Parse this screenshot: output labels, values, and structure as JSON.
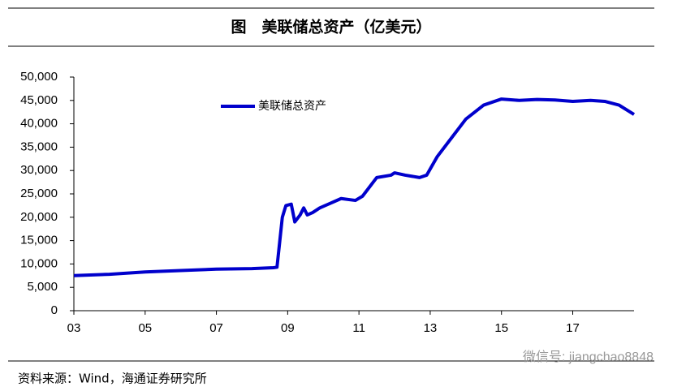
{
  "chart_data": {
    "type": "line",
    "title": "图　美联储总资产（亿美元）",
    "source": "资料来源：Wind，海通证券研究所",
    "watermark": "微信号: jiangchao8848",
    "x": [
      3,
      4,
      5,
      6,
      7,
      8,
      8.6,
      8.7,
      8.78,
      8.85,
      8.95,
      9.1,
      9.2,
      9.35,
      9.45,
      9.55,
      9.7,
      9.9,
      10.2,
      10.5,
      10.9,
      11.1,
      11.5,
      11.9,
      12.0,
      12.3,
      12.7,
      12.9,
      13.2,
      13.6,
      14.0,
      14.5,
      15.0,
      15.5,
      16.0,
      16.5,
      17.0,
      17.5,
      17.9,
      18.3,
      18.72
    ],
    "series": [
      {
        "name": "美联储总资产",
        "color": "#0000cc",
        "values": [
          7500,
          7800,
          8300,
          8600,
          8900,
          9000,
          9200,
          9300,
          15000,
          20000,
          22500,
          22800,
          19000,
          20500,
          22000,
          20500,
          21000,
          22000,
          23000,
          24000,
          23600,
          24500,
          28500,
          29000,
          29500,
          29000,
          28500,
          29000,
          33000,
          37000,
          41000,
          44000,
          45300,
          45000,
          45200,
          45100,
          44800,
          45000,
          44800,
          44000,
          42000
        ]
      }
    ],
    "xlim": [
      3,
      18.72
    ],
    "xticks": [
      {
        "value": 3,
        "label": "03"
      },
      {
        "value": 5,
        "label": "05"
      },
      {
        "value": 7,
        "label": "07"
      },
      {
        "value": 9,
        "label": "09"
      },
      {
        "value": 11,
        "label": "11"
      },
      {
        "value": 13,
        "label": "13"
      },
      {
        "value": 15,
        "label": "15"
      },
      {
        "value": 17,
        "label": "17"
      }
    ],
    "ylim": [
      0,
      50000
    ],
    "yticks": [
      0,
      {
        "value": 5000,
        "label": "5,000"
      },
      {
        "value": 10000,
        "label": "10,000"
      },
      {
        "value": 15000,
        "label": "15,000"
      },
      {
        "value": 20000,
        "label": "20,000"
      },
      {
        "value": 25000,
        "label": "25,000"
      },
      {
        "value": 30000,
        "label": "30,000"
      },
      {
        "value": 35000,
        "label": "35,000"
      },
      {
        "value": 40000,
        "label": "40,000"
      },
      {
        "value": 45000,
        "label": "45,000"
      },
      {
        "value": 50000,
        "label": "50,000"
      }
    ]
  }
}
